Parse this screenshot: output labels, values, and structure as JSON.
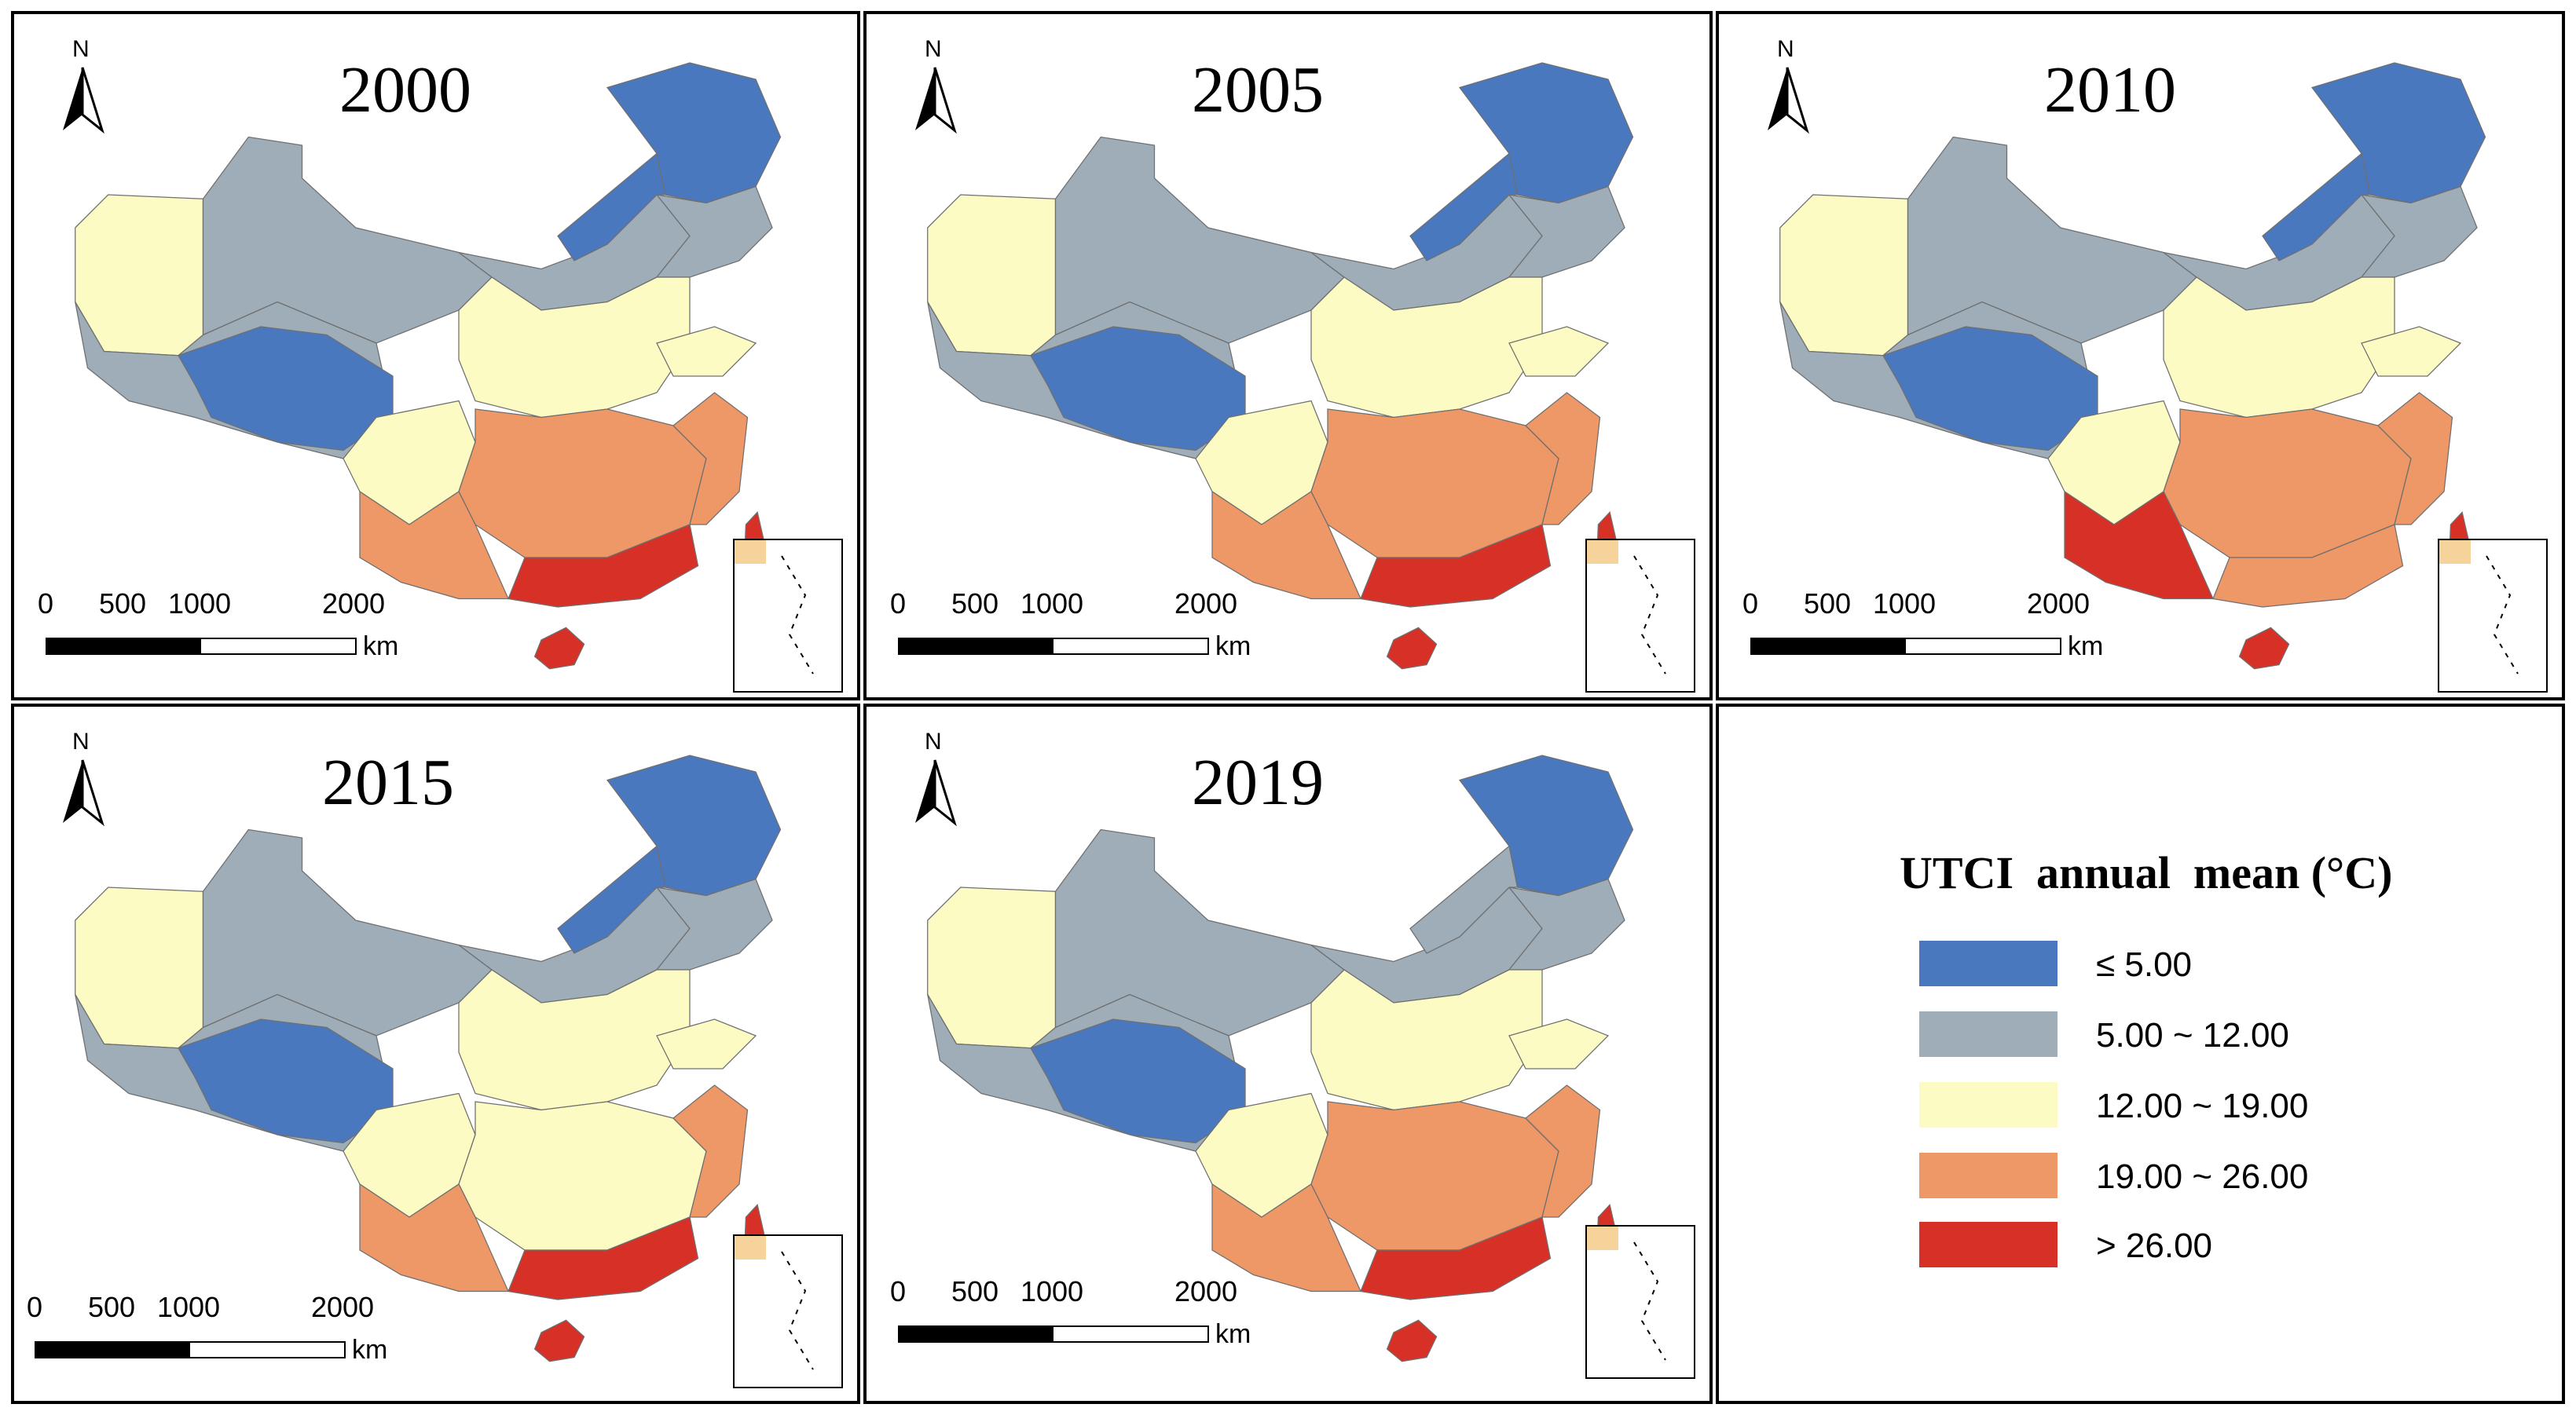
{
  "figure": {
    "description_label": "UTCI annual mean maps",
    "years": [
      "2000",
      "2005",
      "2010",
      "2015",
      "2019"
    ]
  },
  "panels": [
    {
      "year": "2000",
      "north": "N",
      "scale": {
        "ticks": [
          "0",
          "500",
          "1000",
          "2000"
        ],
        "unit": "km"
      }
    },
    {
      "year": "2005",
      "north": "N",
      "scale": {
        "ticks": [
          "0",
          "500",
          "1000",
          "2000"
        ],
        "unit": "km"
      }
    },
    {
      "year": "2010",
      "north": "N",
      "scale": {
        "ticks": [
          "0",
          "500",
          "1000",
          "2000"
        ],
        "unit": "km"
      }
    },
    {
      "year": "2015",
      "north": "N",
      "scale": {
        "ticks": [
          "0",
          "500",
          "1000",
          "2000"
        ],
        "unit": "km"
      }
    },
    {
      "year": "2019",
      "north": "N",
      "scale": {
        "ticks": [
          "0",
          "500",
          "1000",
          "2000"
        ],
        "unit": "km"
      }
    }
  ],
  "legend": {
    "title": "UTCI  annual  mean (°C)",
    "classes": [
      {
        "label": "≤ 5.00",
        "color": "#4a78bf"
      },
      {
        "label": "5.00 ~ 12.00",
        "color": "#9eadb8"
      },
      {
        "label": "12.00 ~ 19.00",
        "color": "#fdfbc4"
      },
      {
        "label": "19.00 ~ 26.00",
        "color": "#ee9767"
      },
      {
        "label": ">  26.00",
        "color": "#d63027"
      }
    ]
  },
  "colors": {
    "outline": "#6f6f6f",
    "sea_inset_land": "#f6d39a"
  }
}
